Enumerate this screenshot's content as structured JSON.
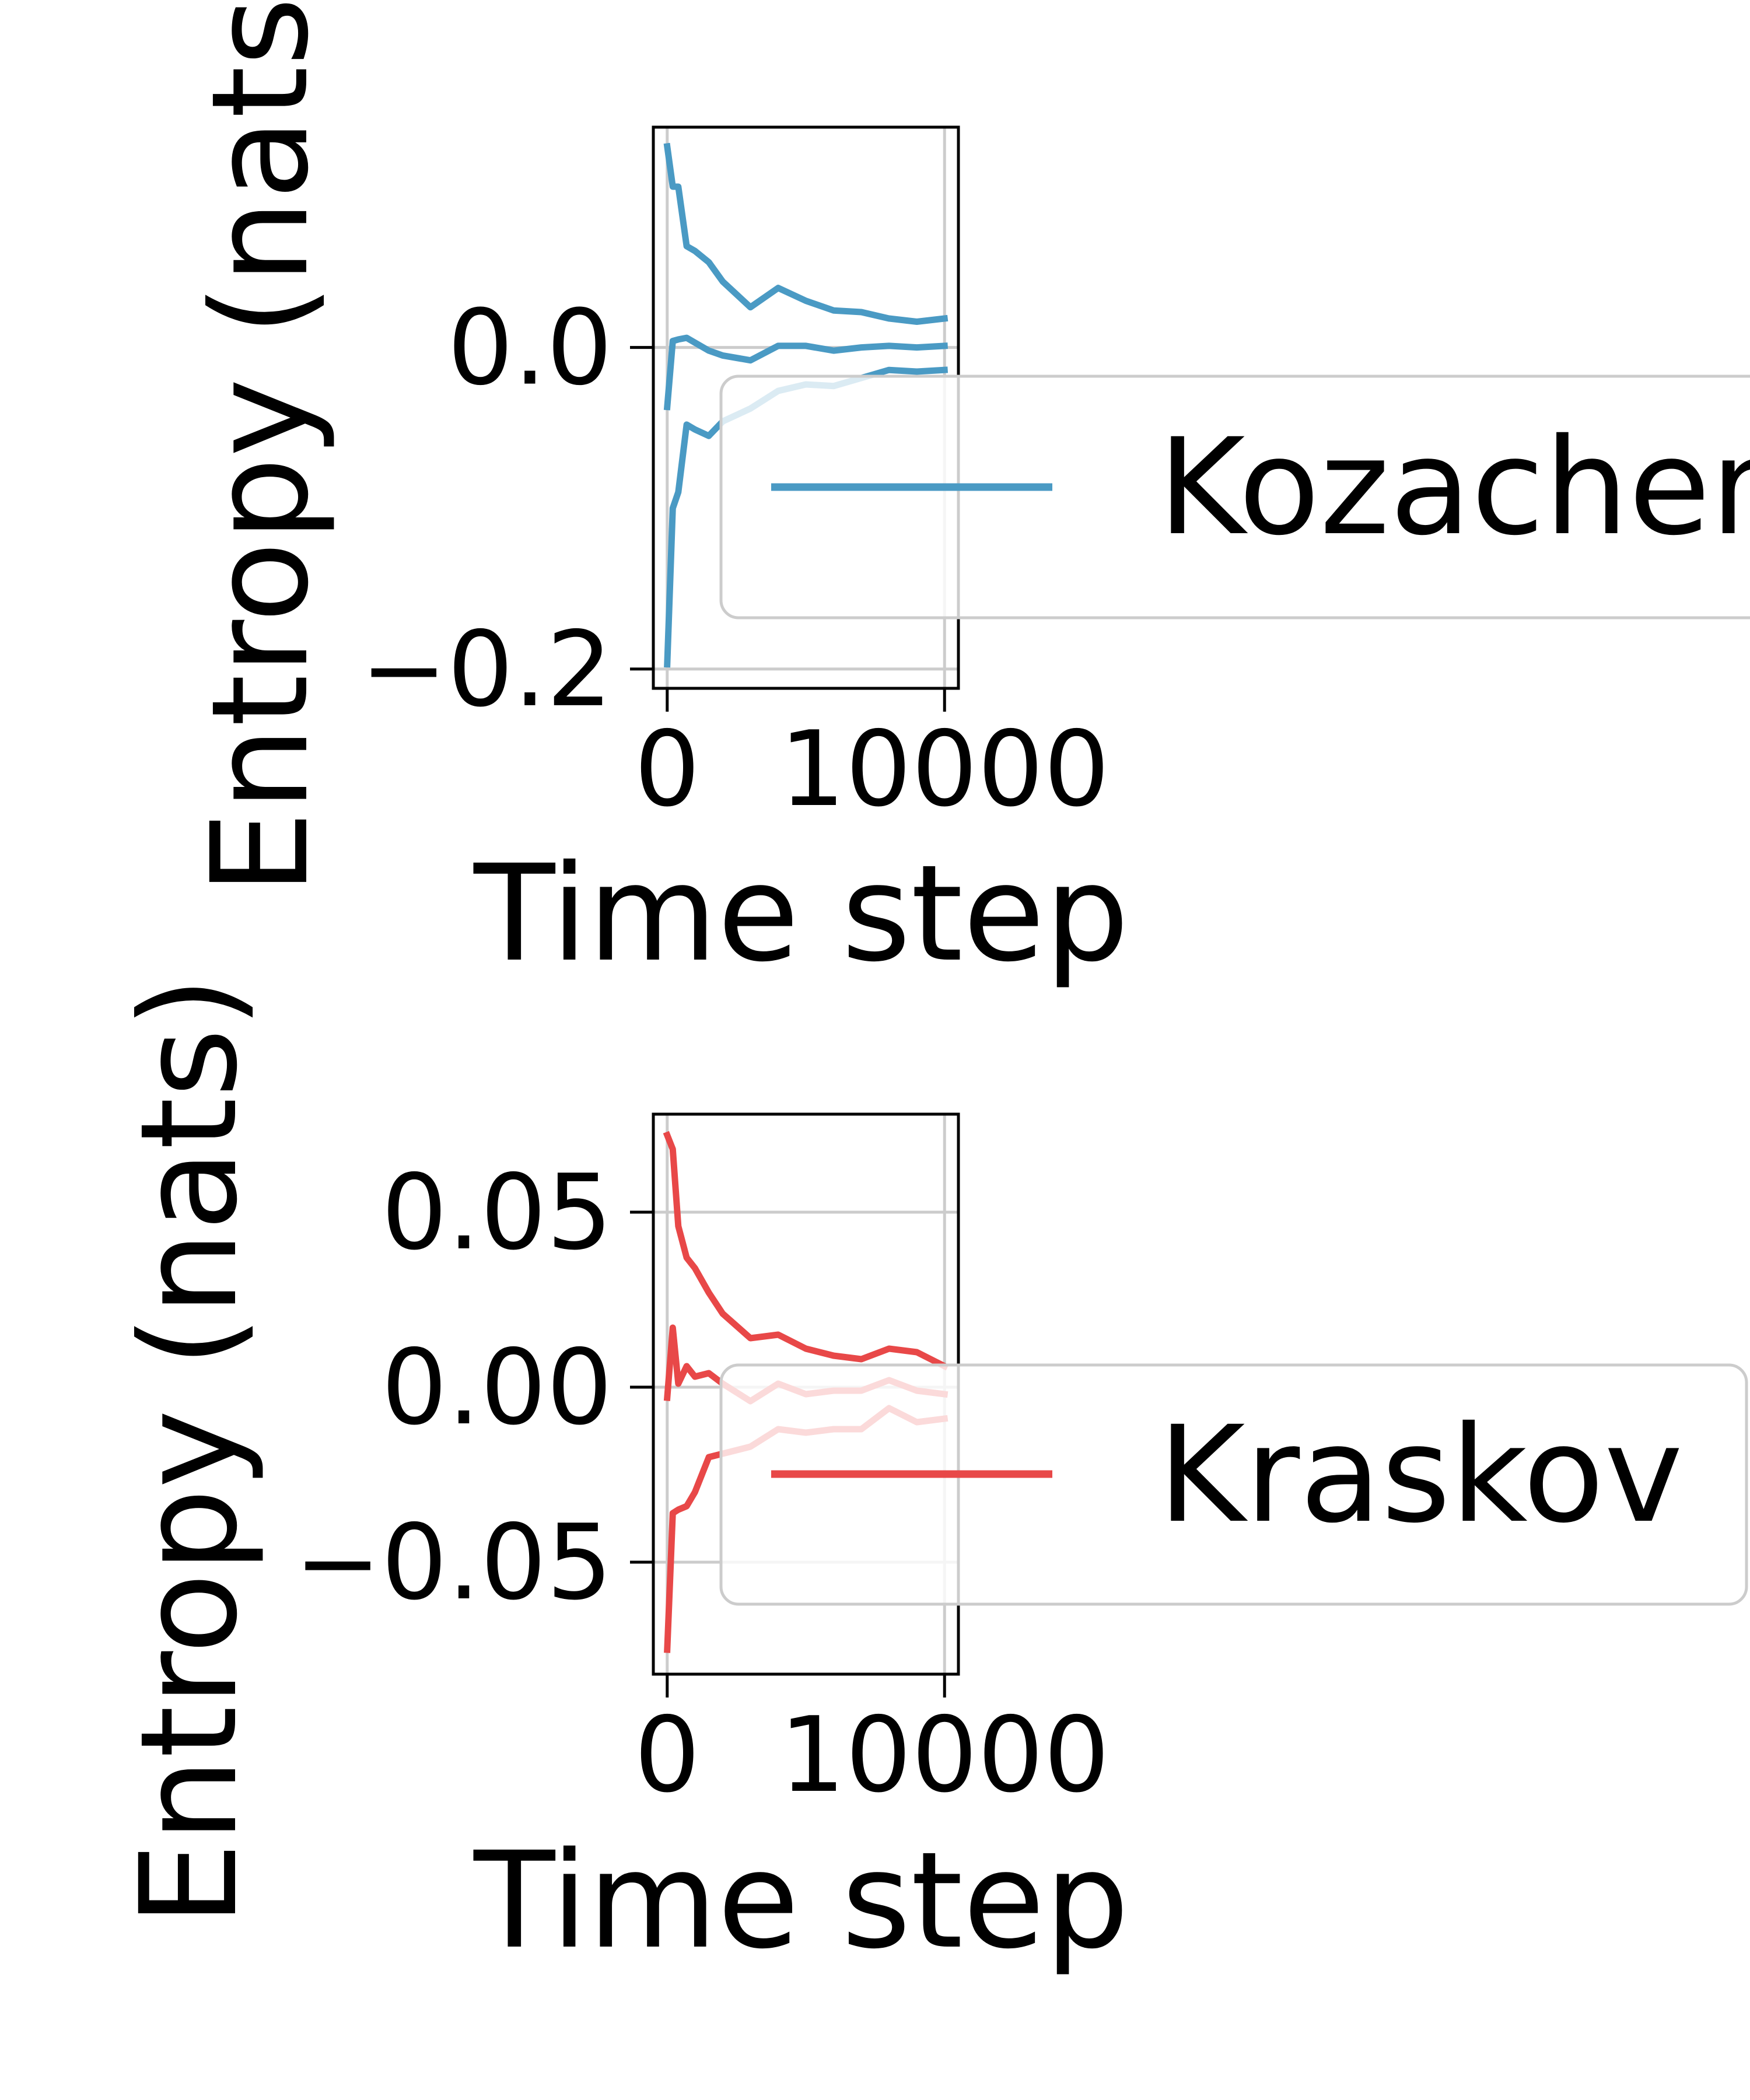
{
  "chart_data": [
    {
      "type": "line",
      "xlabel": "Time step",
      "ylabel": "Entropy (nats)",
      "xlim": [
        -500,
        10500
      ],
      "ylim": [
        -0.212,
        0.137
      ],
      "xticks": [
        0,
        10000
      ],
      "xtick_labels": [
        "0",
        "10000"
      ],
      "yticks": [
        0.0,
        -0.2
      ],
      "ytick_labels": [
        "0.0",
        "−0.2"
      ],
      "grid": true,
      "legend_position": "center-right",
      "color": "#4a9ac4",
      "legend": [
        "Kozachenko"
      ],
      "series": [
        {
          "name": "Kozachenko",
          "role": "mean",
          "x": [
            0,
            200,
            400,
            700,
            1000,
            1500,
            2000,
            3000,
            4000,
            5000,
            6000,
            7000,
            8000,
            9000,
            10000
          ],
          "y": [
            -0.037,
            0.004,
            0.005,
            0.006,
            0.003,
            -0.002,
            -0.005,
            -0.008,
            0.001,
            0.001,
            -0.002,
            0.0,
            0.001,
            0.0,
            0.001
          ]
        },
        {
          "role": "upper",
          "x": [
            0,
            200,
            400,
            700,
            1000,
            1500,
            2000,
            3000,
            4000,
            5000,
            6000,
            7000,
            8000,
            9000,
            10000
          ],
          "y": [
            0.125,
            0.1,
            0.1,
            0.063,
            0.06,
            0.053,
            0.041,
            0.025,
            0.037,
            0.029,
            0.023,
            0.022,
            0.018,
            0.016,
            0.018
          ]
        },
        {
          "role": "lower",
          "x": [
            0,
            200,
            400,
            700,
            1000,
            1500,
            2000,
            3000,
            4000,
            5000,
            6000,
            7000,
            8000,
            9000,
            10000
          ],
          "y": [
            -0.197,
            -0.1,
            -0.09,
            -0.048,
            -0.051,
            -0.055,
            -0.046,
            -0.038,
            -0.027,
            -0.023,
            -0.024,
            -0.019,
            -0.014,
            -0.015,
            -0.014
          ]
        }
      ]
    },
    {
      "type": "line",
      "xlabel": "Time step",
      "ylabel": "Entropy (nats)",
      "xlim": [
        -500,
        10500
      ],
      "ylim": [
        -0.082,
        0.078
      ],
      "xticks": [
        0,
        10000
      ],
      "xtick_labels": [
        "0",
        "10000"
      ],
      "yticks": [
        0.05,
        0.0,
        -0.05
      ],
      "ytick_labels": [
        "0.05",
        "0.00",
        "−0.05"
      ],
      "grid": true,
      "legend_position": "center-right",
      "color": "#e84848",
      "legend": [
        "Kraskov"
      ],
      "series": [
        {
          "name": "Kraskov",
          "role": "mean",
          "x": [
            0,
            200,
            400,
            700,
            1000,
            1500,
            2000,
            3000,
            4000,
            5000,
            6000,
            7000,
            8000,
            9000,
            10000
          ],
          "y": [
            -0.003,
            0.017,
            0.001,
            0.006,
            0.003,
            0.004,
            0.001,
            -0.004,
            0.001,
            -0.002,
            -0.001,
            -0.001,
            0.002,
            -0.001,
            -0.002
          ]
        },
        {
          "role": "upper",
          "x": [
            0,
            200,
            400,
            700,
            1000,
            1500,
            2000,
            3000,
            4000,
            5000,
            6000,
            7000,
            8000,
            9000,
            10000
          ],
          "y": [
            0.072,
            0.068,
            0.046,
            0.037,
            0.034,
            0.027,
            0.021,
            0.014,
            0.015,
            0.011,
            0.009,
            0.008,
            0.011,
            0.01,
            0.006
          ]
        },
        {
          "role": "lower",
          "x": [
            0,
            200,
            400,
            700,
            1000,
            1500,
            2000,
            3000,
            4000,
            5000,
            6000,
            7000,
            8000,
            9000,
            10000
          ],
          "y": [
            -0.075,
            -0.036,
            -0.035,
            -0.034,
            -0.03,
            -0.02,
            -0.019,
            -0.017,
            -0.012,
            -0.013,
            -0.012,
            -0.012,
            -0.006,
            -0.01,
            -0.009
          ]
        }
      ]
    }
  ]
}
